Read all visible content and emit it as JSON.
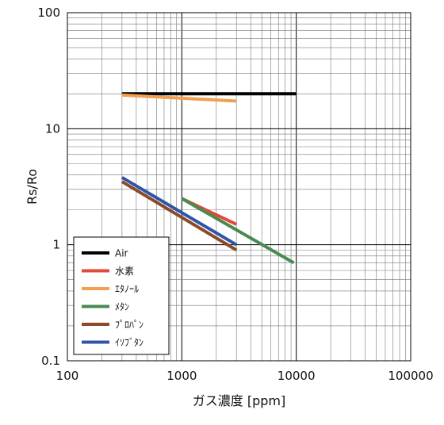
{
  "chart_data": {
    "type": "line",
    "xlabel": "ガス濃度 [ppm]",
    "ylabel": "Rs/Ro",
    "xscale": "log",
    "yscale": "log",
    "xlim": [
      100,
      100000
    ],
    "ylim": [
      0.1,
      100
    ],
    "grid": true,
    "legend_position": "bottom-left",
    "x_tick_labels": [
      "100",
      "1000",
      "10000",
      "100000"
    ],
    "y_tick_labels": [
      "0.1",
      "1",
      "10",
      "100"
    ],
    "series": [
      {
        "name": "Air",
        "color": "#000000",
        "x": [
          300,
          10000
        ],
        "y": [
          20,
          20
        ]
      },
      {
        "name": "水素",
        "color": "#e04a3a",
        "x": [
          1000,
          3000
        ],
        "y": [
          2.5,
          1.5
        ]
      },
      {
        "name": "ｴﾀﾉｰﾙ",
        "color": "#f0a050",
        "x": [
          300,
          3000
        ],
        "y": [
          19.5,
          17.3
        ]
      },
      {
        "name": "ﾒﾀﾝ",
        "color": "#4a8a50",
        "x": [
          1000,
          9500
        ],
        "y": [
          2.5,
          0.7
        ]
      },
      {
        "name": "ﾌﾟﾛﾊﾟﾝ",
        "color": "#8b4a2a",
        "x": [
          300,
          3000
        ],
        "y": [
          3.5,
          0.9
        ]
      },
      {
        "name": "ｲｿﾌﾞﾀﾝ",
        "color": "#2e55a6",
        "x": [
          300,
          3000
        ],
        "y": [
          3.8,
          1.0
        ]
      }
    ]
  }
}
